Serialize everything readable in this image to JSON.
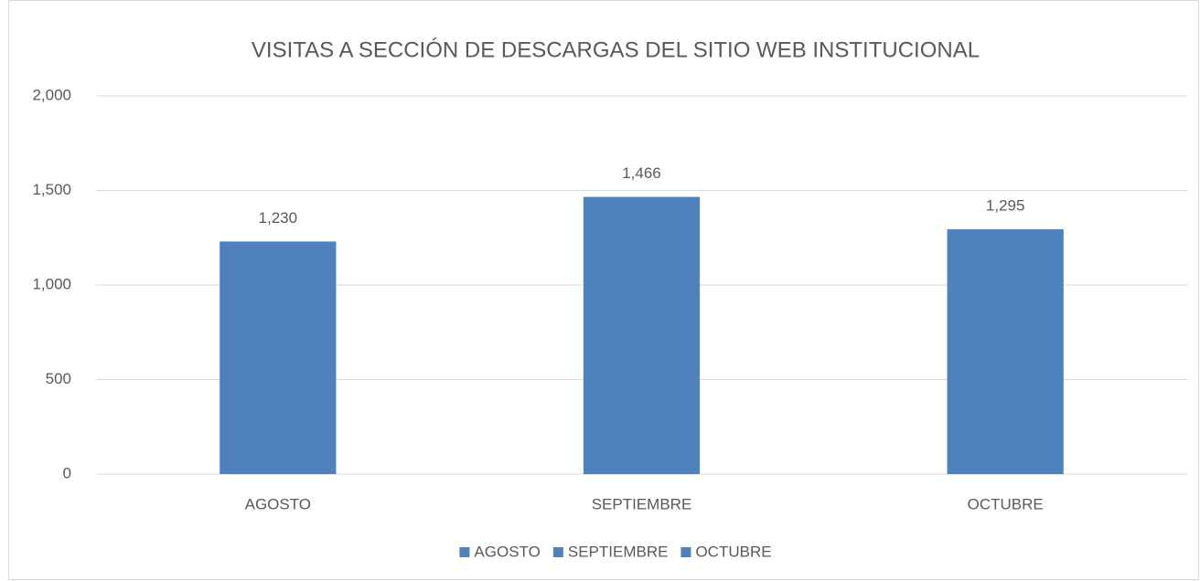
{
  "chart_data": {
    "type": "bar",
    "title": "VISITAS A SECCIÓN DE DESCARGAS DEL SITIO WEB INSTITUCIONAL",
    "categories": [
      "AGOSTO",
      "SEPTIEMBRE",
      "OCTUBRE"
    ],
    "values": [
      1230,
      1466,
      1295
    ],
    "value_labels": [
      "1,230",
      "1,466",
      "1,295"
    ],
    "color": "#4f81bd",
    "ylim": [
      0,
      2000
    ],
    "yticks": [
      0,
      500,
      {
        "value": 1000,
        "label": "1,000"
      },
      {
        "value": 1500,
        "label": "1,500"
      },
      {
        "value": 2000,
        "label": "2,000"
      }
    ],
    "grid": true,
    "legend": "bottom"
  }
}
